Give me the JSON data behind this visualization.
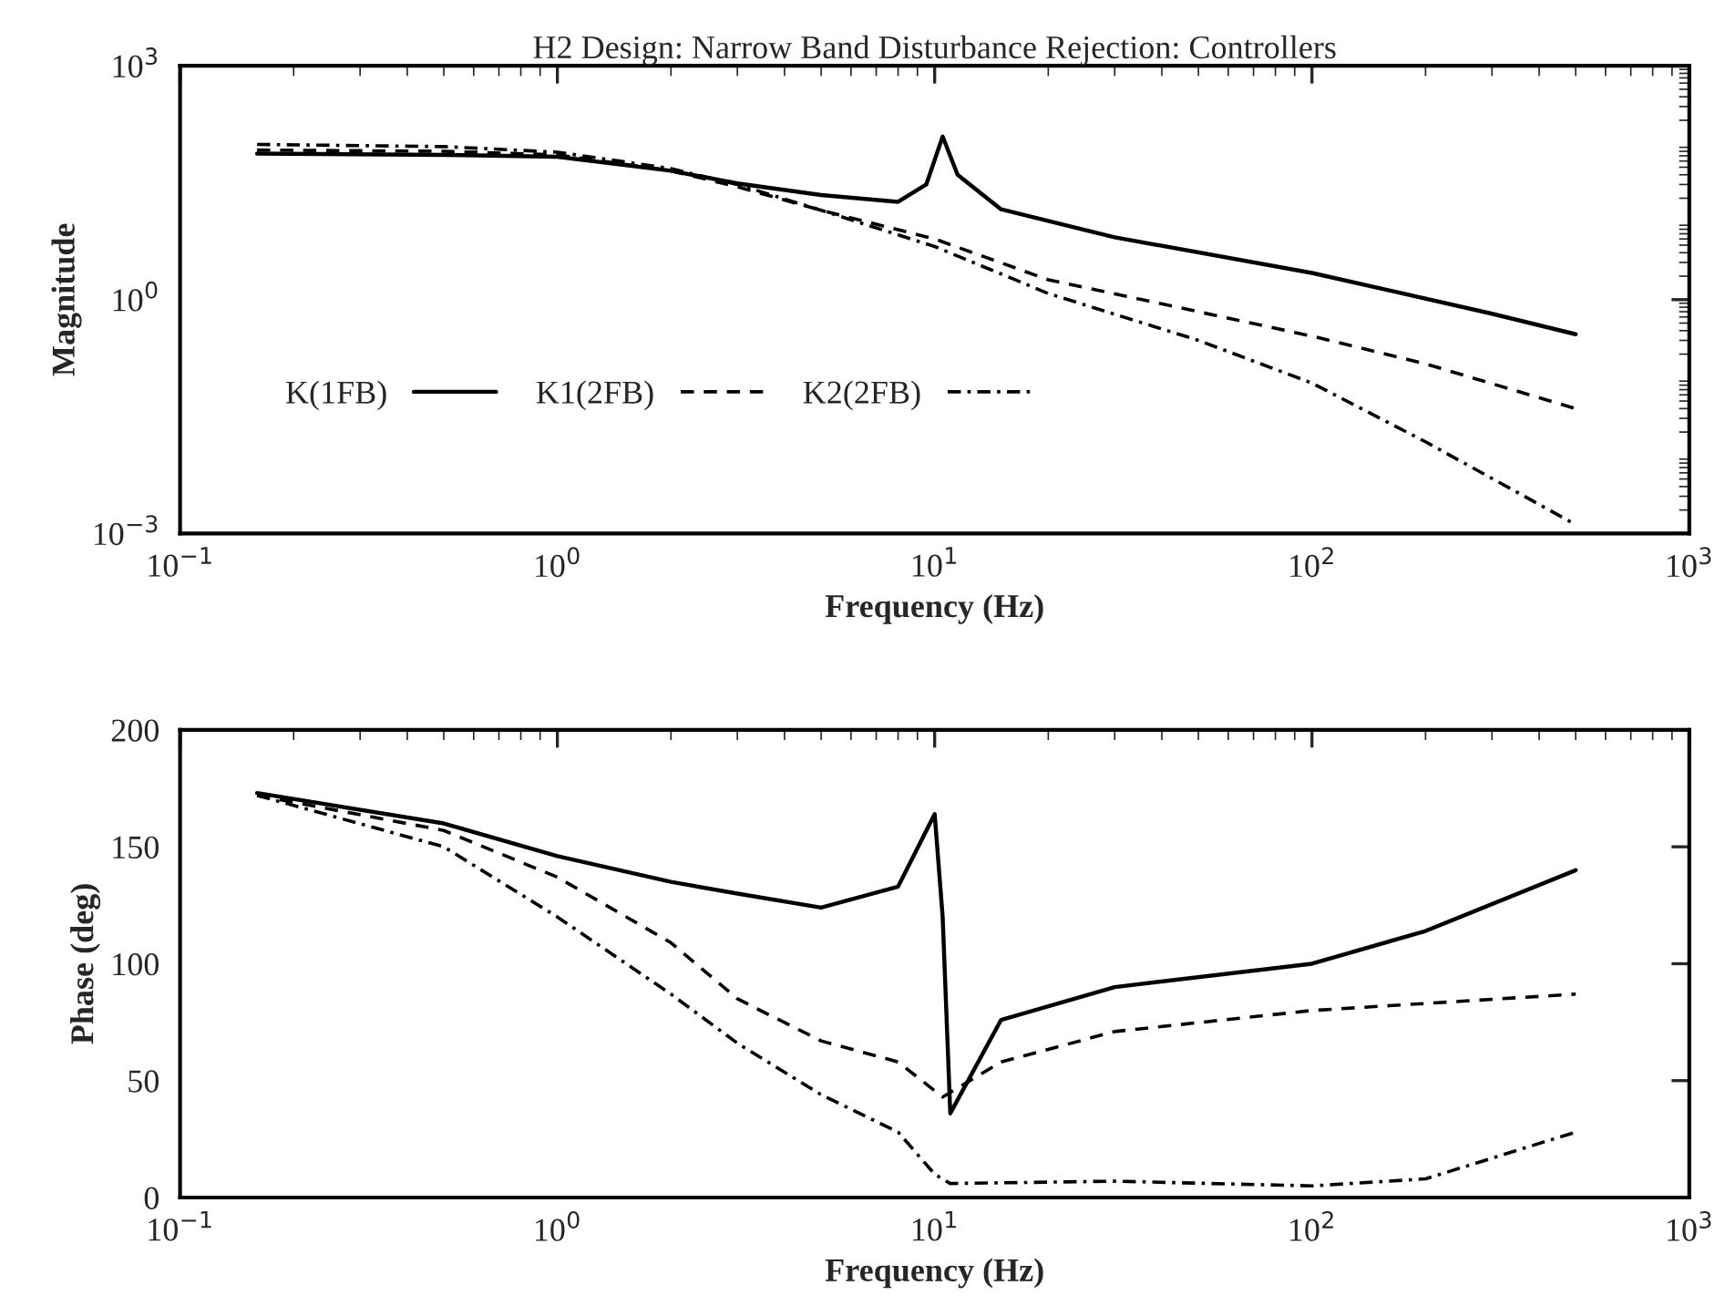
{
  "chart_data": [
    {
      "type": "line",
      "title": "H2 Design: Narrow Band Disturbance Rejection: Controllers",
      "xlabel": "Frequency (Hz)",
      "ylabel": "Magnitude",
      "log": "xy",
      "xlim": [
        0.1,
        1000
      ],
      "xticks": [
        {
          "value": 0.1,
          "label": "10$^{−1}$"
        },
        {
          "value": 1,
          "label": "10$^{0}$"
        },
        {
          "value": 10,
          "label": "10$^{1}$"
        },
        {
          "value": 100,
          "label": "10$^{2}$"
        },
        {
          "value": 1000,
          "label": "10$^{3}$"
        }
      ],
      "ylim": [
        0.001,
        1000
      ],
      "yticks": [
        {
          "value": 0.001,
          "label": "10$^{−3}$"
        },
        {
          "value": 1,
          "label": "10$^{0}$"
        },
        {
          "value": 1000,
          "label": "10$^{3}$"
        }
      ],
      "legend": "bottom left",
      "grid": false,
      "series": [
        {
          "name": "K(1FB)",
          "color": "#000000",
          "line_style": "solid",
          "x": [
            0.16,
            0.5,
            1,
            2,
            3,
            5,
            8,
            9.5,
            10.5,
            11.5,
            15,
            30,
            100,
            300,
            500
          ],
          "values": [
            75,
            72,
            68,
            45,
            31,
            22,
            18,
            30,
            124,
            40,
            14.4,
            6.3,
            2.2,
            0.66,
            0.36
          ]
        },
        {
          "name": "K1(2FB)",
          "color": "#000000",
          "line_style": "dashed",
          "x": [
            0.16,
            0.5,
            1,
            2,
            3,
            5,
            10,
            20,
            50,
            100,
            200,
            500
          ],
          "values": [
            83,
            80,
            72,
            45,
            28,
            14,
            6,
            1.8,
            0.7,
            0.34,
            0.15,
            0.04
          ]
        },
        {
          "name": "K2(2FB)",
          "color": "#000000",
          "line_style": "dashdot",
          "x": [
            0.16,
            0.5,
            1,
            2,
            3,
            5,
            10,
            20,
            50,
            100,
            200,
            500
          ],
          "values": [
            98,
            92,
            78,
            48,
            30,
            14,
            4.8,
            1.2,
            0.3,
            0.085,
            0.015,
            0.0013
          ]
        }
      ]
    },
    {
      "type": "line",
      "xlabel": "Frequency (Hz)",
      "ylabel": "Phase (deg)",
      "log": "x",
      "xlim": [
        0.1,
        1000
      ],
      "xticks": [
        {
          "value": 0.1,
          "label": "10$^{−1}$"
        },
        {
          "value": 1,
          "label": "10$^{0}$"
        },
        {
          "value": 10,
          "label": "10$^{1}$"
        },
        {
          "value": 100,
          "label": "10$^{2}$"
        },
        {
          "value": 1000,
          "label": "10$^{3}$"
        }
      ],
      "ylim": [
        0,
        200
      ],
      "yticks": [
        0,
        50,
        100,
        150,
        200
      ],
      "grid": false,
      "series": [
        {
          "color": "#000000",
          "line_style": "solid",
          "x": [
            0.16,
            0.5,
            1,
            2,
            3,
            5,
            8,
            10,
            10.5,
            11,
            15,
            30,
            100,
            200,
            500
          ],
          "values": [
            173,
            160,
            146,
            135,
            130,
            124,
            133,
            164,
            120,
            36,
            76,
            90,
            100,
            114,
            140
          ]
        },
        {
          "color": "#000000",
          "line_style": "dashed",
          "x": [
            0.16,
            0.5,
            1,
            2,
            3,
            5,
            8,
            10.5,
            15,
            30,
            100,
            500
          ],
          "values": [
            172,
            157,
            137,
            109,
            85,
            67,
            58,
            43,
            58,
            71,
            80,
            87
          ]
        },
        {
          "color": "#000000",
          "line_style": "dashdot",
          "x": [
            0.16,
            0.5,
            1,
            2,
            3,
            5,
            8,
            10,
            11,
            30,
            100,
            200,
            500
          ],
          "values": [
            172,
            150,
            120,
            87,
            66,
            44,
            28,
            10,
            6,
            7,
            5,
            8,
            28
          ]
        }
      ]
    }
  ]
}
